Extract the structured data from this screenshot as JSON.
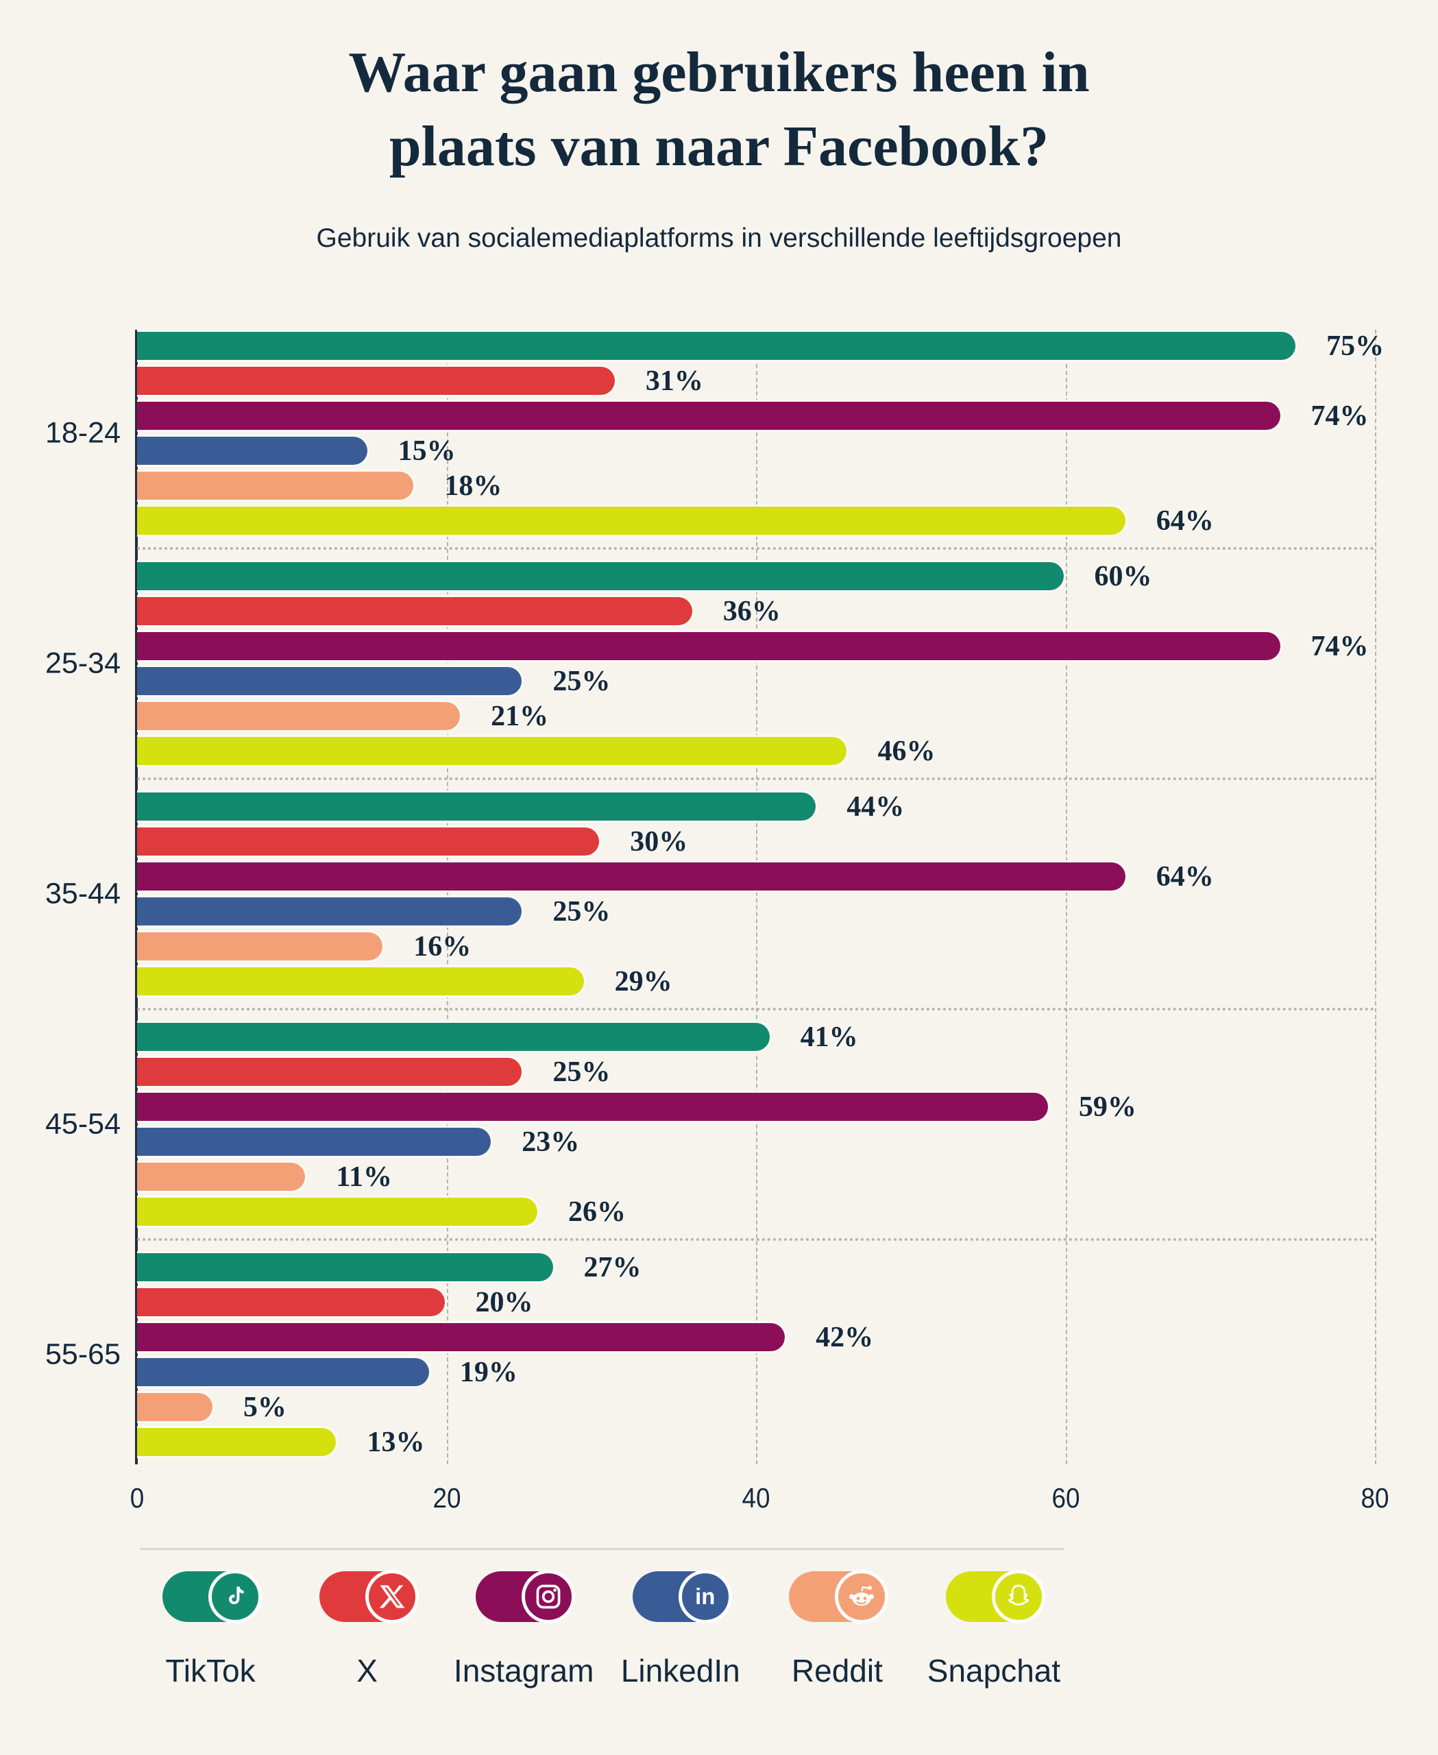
{
  "header": {
    "title_lines": [
      "Waar gaan gebruikers heen in",
      "plaats van naar Facebook?"
    ],
    "title": "Waar gaan gebruikers heen in plaats van naar Facebook?",
    "subtitle": "Gebruik van socialemediaplatforms in verschillende leeftijdsgroepen"
  },
  "chart_data": {
    "type": "bar",
    "orientation": "horizontal",
    "title": "Waar gaan gebruikers heen in plaats van naar Facebook?",
    "subtitle": "Gebruik van socialemediaplatforms in verschillende leeftijdsgroepen",
    "categories": [
      "18-24",
      "25-34",
      "35-44",
      "45-54",
      "55-65"
    ],
    "series": [
      {
        "name": "TikTok",
        "color": "#128A6E",
        "values": [
          75,
          60,
          44,
          41,
          27
        ]
      },
      {
        "name": "X",
        "color": "#E03B3C",
        "values": [
          31,
          36,
          30,
          25,
          20
        ]
      },
      {
        "name": "Instagram",
        "color": "#8C0E59",
        "values": [
          74,
          74,
          64,
          59,
          42
        ]
      },
      {
        "name": "LinkedIn",
        "color": "#3A5C96",
        "values": [
          15,
          25,
          25,
          23,
          19
        ]
      },
      {
        "name": "Reddit",
        "color": "#F4A076",
        "values": [
          18,
          21,
          16,
          11,
          5
        ]
      },
      {
        "name": "Snapchat",
        "color": "#D5E00F",
        "values": [
          64,
          46,
          29,
          26,
          13
        ]
      }
    ],
    "value_suffix": "%",
    "xlim": [
      0,
      80
    ],
    "x_ticks": [
      0,
      20,
      40,
      60,
      80
    ],
    "grid": "dashed-vertical-gridlines, dotted-group-separators",
    "legend_position": "bottom"
  },
  "legend": {
    "items": [
      {
        "label": "TikTok",
        "icon": "tiktok-icon",
        "color": "#128A6E"
      },
      {
        "label": "X",
        "icon": "x-icon",
        "color": "#E03B3C"
      },
      {
        "label": "Instagram",
        "icon": "instagram-icon",
        "color": "#8C0E59"
      },
      {
        "label": "LinkedIn",
        "icon": "linkedin-icon",
        "color": "#3A5C96"
      },
      {
        "label": "Reddit",
        "icon": "reddit-icon",
        "color": "#F4A076"
      },
      {
        "label": "Snapchat",
        "icon": "snapchat-icon",
        "color": "#D5E00F"
      }
    ]
  },
  "colors": {
    "background": "#F7F4EE",
    "text": "#14293C",
    "axis": "#232F3B",
    "gridline": "#B6B3AE",
    "divider": "#DAD7D0",
    "bar_outline": "#FBFAF5"
  }
}
